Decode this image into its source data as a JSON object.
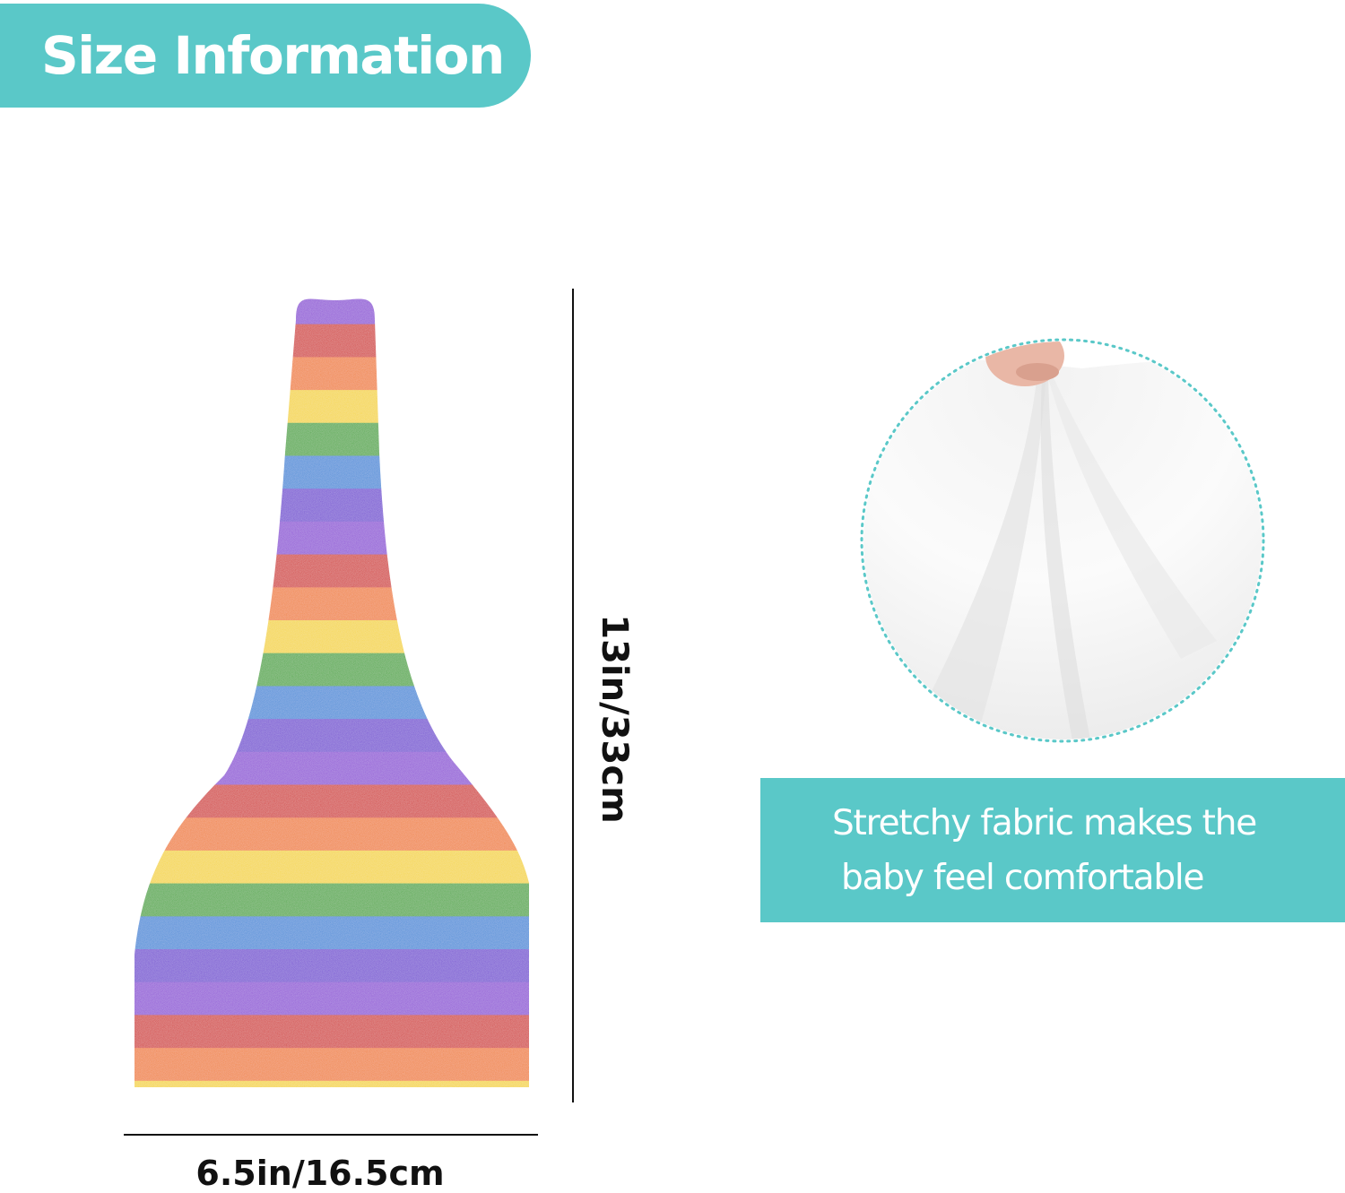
{
  "title": {
    "text": "Size Information"
  },
  "colors": {
    "accent": "#5ac8c8",
    "stripes": [
      "#8a3fd6",
      "#d2231f",
      "#f07a14",
      "#f4d41a",
      "#3da52b",
      "#2f86d8",
      "#6d3bd2"
    ]
  },
  "product_image": {
    "icon": "striped-hat-illustration"
  },
  "dimensions": {
    "height_label": "13in/33cm",
    "width_label": "6.5in/16.5cm"
  },
  "fabric_image": {
    "icon": "stretched-fabric-closeup"
  },
  "feature": {
    "line1": "Stretchy fabric makes the",
    "line2": "baby feel comfortable"
  }
}
